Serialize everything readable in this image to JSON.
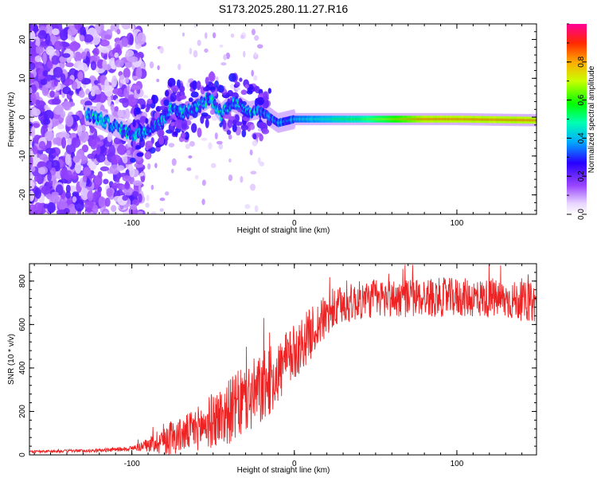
{
  "title": "S173.2025.280.11.27.R16",
  "chart_data": [
    {
      "type": "heatmap",
      "title": "S173.2025.280.11.27.R16",
      "xlabel": "Height of straight line (km)",
      "ylabel": "Frequency (Hz)",
      "xlim": [
        -163,
        149
      ],
      "ylim": [
        -25,
        24
      ],
      "x_ticks": [
        "-100",
        "0",
        "100"
      ],
      "y_ticks": [
        "20",
        "10",
        "0",
        "-10",
        "-20"
      ],
      "colorbar": {
        "label": "Normalized spectral amplitude",
        "range": [
          0,
          1
        ],
        "ticks": [
          "0.0",
          "0.2",
          "0.4",
          "0.6",
          "0.8"
        ],
        "colors": [
          "#ffffff",
          "#b46eff",
          "#5a00e6",
          "#0000ff",
          "#00c8ff",
          "#00ff64",
          "#c8ff00",
          "#ffa500",
          "#ff0000",
          "#ff0080"
        ]
      },
      "signal_track": [
        [
          -125,
          0.5
        ],
        [
          -115,
          -1.5
        ],
        [
          -105,
          -3.5
        ],
        [
          -98,
          -4.5
        ],
        [
          -90,
          -3
        ],
        [
          -82,
          -1
        ],
        [
          -75,
          2.5
        ],
        [
          -68,
          1
        ],
        [
          -60,
          2.5
        ],
        [
          -52,
          5
        ],
        [
          -45,
          1
        ],
        [
          -38,
          4
        ],
        [
          -28,
          1.5
        ],
        [
          -22,
          2
        ],
        [
          -15,
          0
        ],
        [
          -10,
          -1.5
        ],
        [
          -5,
          -1
        ],
        [
          0,
          -0.5
        ],
        [
          20,
          -0.5
        ],
        [
          60,
          -0.5
        ],
        [
          100,
          -0.5
        ],
        [
          149,
          -0.8
        ]
      ]
    },
    {
      "type": "line",
      "xlabel": "Height of straight line (km)",
      "ylabel": "SNR (10 * v/v)",
      "xlim": [
        -163,
        149
      ],
      "ylim": [
        0,
        880
      ],
      "x_ticks": [
        "-100",
        "0",
        "100"
      ],
      "y_ticks": [
        "0",
        "200",
        "400",
        "600",
        "800"
      ],
      "series": [
        {
          "name": "SNR",
          "color": "#ee2222",
          "trend_x": [
            -163,
            -120,
            -100,
            -90,
            -80,
            -70,
            -60,
            -50,
            -40,
            -30,
            -20,
            -10,
            0,
            10,
            20,
            30,
            40,
            50,
            60,
            80,
            100,
            120,
            149
          ],
          "trend_y": [
            15,
            20,
            30,
            45,
            75,
            90,
            120,
            160,
            200,
            250,
            300,
            380,
            470,
            560,
            640,
            690,
            710,
            720,
            720,
            725,
            725,
            720,
            700
          ],
          "noise_amplitude": [
            5,
            8,
            12,
            30,
            80,
            80,
            100,
            130,
            150,
            170,
            170,
            150,
            130,
            120,
            100,
            90,
            90,
            90,
            90,
            90,
            90,
            90,
            90
          ]
        }
      ]
    }
  ]
}
